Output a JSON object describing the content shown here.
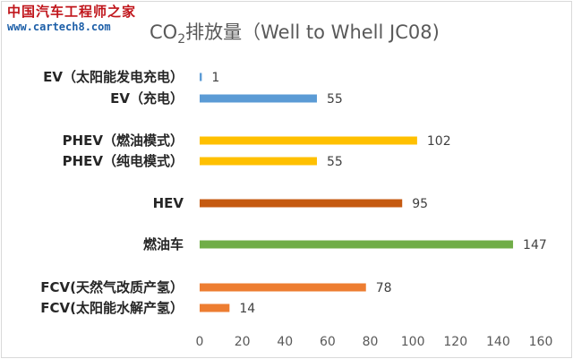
{
  "watermark": {
    "site_name": "中国汽车工程师之家",
    "url": "www.cartech8.com"
  },
  "chart_data": {
    "type": "bar",
    "orientation": "horizontal",
    "title_prefix": "CO",
    "title_subscript": "2",
    "title_suffix": "排放量（Well to Whell JC08)",
    "categories": [
      "EV（太阳能发电充电）",
      "EV（充电）",
      "PHEV（燃油模式）",
      "PHEV（纯电模式）",
      "HEV",
      "燃油车",
      "FCV(天然气改质产氢）",
      "FCV(太阳能水解产氢）"
    ],
    "values": [
      1,
      55,
      102,
      55,
      95,
      147,
      78,
      14
    ],
    "colors": [
      "#5b9bd5",
      "#5b9bd5",
      "#ffc000",
      "#ffc000",
      "#c55a11",
      "#70ad47",
      "#ed7d31",
      "#ed7d31"
    ],
    "xlim": [
      0,
      160
    ],
    "xticks": [
      0,
      20,
      40,
      60,
      80,
      100,
      120,
      140,
      160
    ],
    "grid": false,
    "legend": "none"
  }
}
